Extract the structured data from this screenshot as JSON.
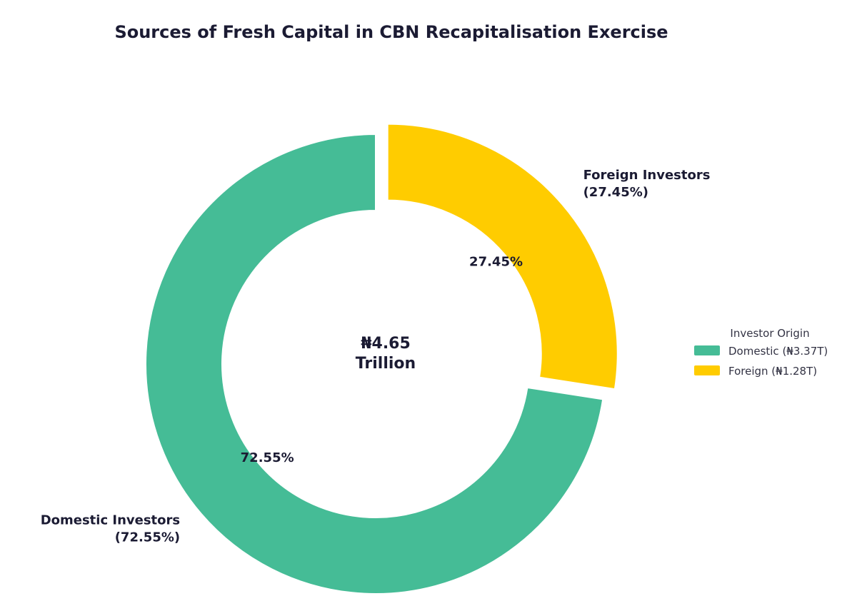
{
  "chart_data": {
    "type": "pie",
    "title": "Sources of Fresh Capital in CBN Recapitalisation Exercise",
    "center_label": [
      "₦4.65",
      "Trillion"
    ],
    "donut": true,
    "slices": [
      {
        "key": "foreign",
        "value": 27.45,
        "pct_label": "27.45%",
        "outer_label": [
          "Foreign Investors",
          "(27.45%)"
        ],
        "legend_label": "Foreign (₦1.28T)",
        "color": "#FFCC00",
        "exploded": true
      },
      {
        "key": "domestic",
        "value": 72.55,
        "pct_label": "72.55%",
        "outer_label": [
          "Domestic Investors",
          "(72.55%)"
        ],
        "legend_label": "Domestic (₦3.37T)",
        "color": "#45BC96",
        "exploded": false
      }
    ],
    "legend": {
      "title": "Investor Origin",
      "placement": "right",
      "order": [
        "domestic",
        "foreign"
      ]
    }
  }
}
